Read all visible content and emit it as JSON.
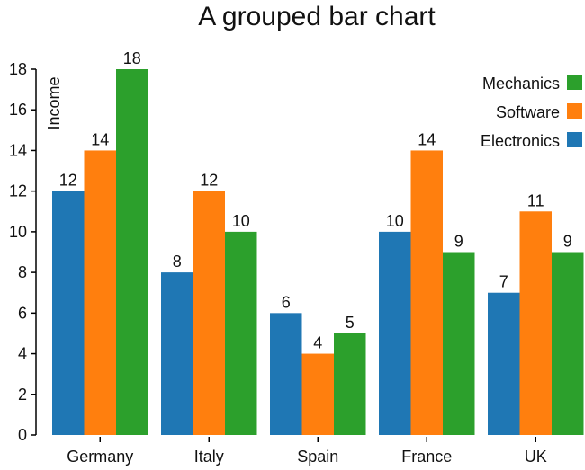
{
  "chart_data": {
    "type": "bar",
    "title": "A grouped bar chart",
    "xlabel": "",
    "ylabel": "Income",
    "ylim": [
      0,
      18
    ],
    "yticks": [
      0,
      2,
      4,
      6,
      8,
      10,
      12,
      14,
      16,
      18
    ],
    "grid": false,
    "legend_position": "top-right",
    "categories": [
      "Germany",
      "Italy",
      "Spain",
      "France",
      "UK"
    ],
    "series": [
      {
        "name": "Electronics",
        "color": "#1f77b4",
        "values": [
          12,
          8,
          6,
          10,
          7
        ]
      },
      {
        "name": "Software",
        "color": "#ff7f0e",
        "values": [
          14,
          12,
          4,
          14,
          11
        ]
      },
      {
        "name": "Mechanics",
        "color": "#2ca02c",
        "values": [
          18,
          10,
          5,
          9,
          9
        ]
      }
    ],
    "legend": [
      {
        "label": "Mechanics",
        "color": "#2ca02c"
      },
      {
        "label": "Software",
        "color": "#ff7f0e"
      },
      {
        "label": "Electronics",
        "color": "#1f77b4"
      }
    ]
  }
}
